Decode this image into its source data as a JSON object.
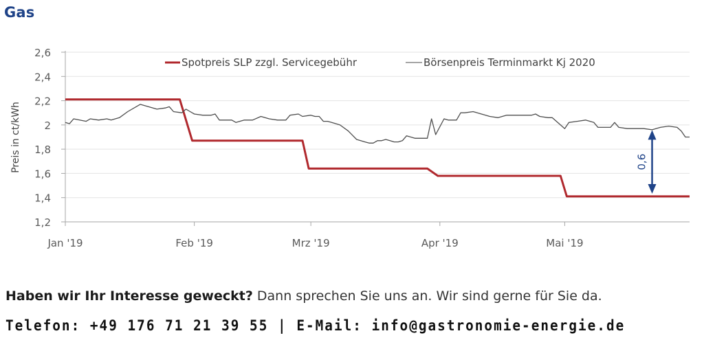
{
  "title": "Gas",
  "chart_data": {
    "type": "line",
    "title": "Gas",
    "xlabel": "",
    "ylabel": "Preis in ct/kWh",
    "ylim": [
      1.2,
      2.6
    ],
    "yticks": [
      1.2,
      1.4,
      1.6,
      1.8,
      2.0,
      2.2,
      2.4,
      2.6
    ],
    "ytick_labels": [
      "1,2",
      "1,4",
      "1,6",
      "1,8",
      "2",
      "2,2",
      "2,4",
      "2,6"
    ],
    "xlim_days": [
      0,
      150
    ],
    "xticks_days": [
      0,
      31,
      59,
      90,
      120
    ],
    "xtick_labels": [
      "Jan '19",
      "Feb '19",
      "Mrz '19",
      "Apr '19",
      "Mai '19"
    ],
    "grid": true,
    "legend_position": "top",
    "series": [
      {
        "name": "Spotpreis SLP zzgl. Servicegebühr",
        "color": "#b0282d",
        "x_days": [
          0,
          27.5,
          30.5,
          57,
          58.5,
          87,
          89.5,
          119,
          120.5,
          150
        ],
        "values": [
          2.21,
          2.21,
          1.87,
          1.87,
          1.64,
          1.64,
          1.58,
          1.58,
          1.41,
          1.41
        ]
      },
      {
        "name": "Börsenpreis Terminmarkt Kj 2020",
        "color": "#4d4d4d",
        "x_days": [
          0,
          1,
          2,
          5,
          6,
          8,
          10,
          11,
          13,
          15,
          18,
          19,
          20,
          22,
          24,
          25,
          26,
          28,
          29,
          30,
          31,
          33,
          35,
          36,
          37,
          39,
          40,
          41,
          43,
          45,
          47,
          49,
          51,
          53,
          54,
          56,
          57,
          59,
          60,
          61,
          62,
          63,
          64,
          66,
          68,
          70,
          72,
          73,
          74,
          75,
          76,
          77,
          78,
          79,
          80,
          81,
          82,
          84,
          85,
          86,
          87,
          88,
          89,
          91,
          92,
          93,
          94,
          95,
          96,
          98,
          100,
          101,
          102,
          104,
          106,
          108,
          110,
          112,
          113,
          114,
          116,
          117,
          119,
          120,
          121,
          123,
          125,
          127,
          128,
          130,
          131,
          132,
          133,
          135,
          137,
          139,
          141,
          143,
          145,
          147,
          148,
          149,
          150
        ],
        "values": [
          2.02,
          2.01,
          2.05,
          2.03,
          2.05,
          2.04,
          2.05,
          2.04,
          2.06,
          2.11,
          2.17,
          2.16,
          2.15,
          2.13,
          2.14,
          2.15,
          2.11,
          2.1,
          2.13,
          2.11,
          2.09,
          2.08,
          2.08,
          2.09,
          2.04,
          2.04,
          2.04,
          2.02,
          2.04,
          2.04,
          2.07,
          2.05,
          2.04,
          2.04,
          2.08,
          2.09,
          2.07,
          2.08,
          2.07,
          2.07,
          2.03,
          2.03,
          2.02,
          2.0,
          1.95,
          1.88,
          1.86,
          1.85,
          1.85,
          1.87,
          1.87,
          1.88,
          1.87,
          1.86,
          1.86,
          1.87,
          1.91,
          1.89,
          1.89,
          1.89,
          1.89,
          2.05,
          1.92,
          2.05,
          2.04,
          2.04,
          2.04,
          2.1,
          2.1,
          2.11,
          2.09,
          2.08,
          2.07,
          2.06,
          2.08,
          2.08,
          2.08,
          2.08,
          2.09,
          2.07,
          2.06,
          2.06,
          2.0,
          1.97,
          2.02,
          2.03,
          2.04,
          2.02,
          1.98,
          1.98,
          1.98,
          2.02,
          1.98,
          1.97,
          1.97,
          1.97,
          1.96,
          1.98,
          1.99,
          1.98,
          1.95,
          1.9,
          1.9
        ]
      }
    ],
    "annotations": [
      {
        "text": "0,6",
        "type": "double-arrow",
        "x_day": 141,
        "from": 1.98,
        "to": 1.41,
        "color": "#1f4388"
      }
    ]
  },
  "footer": {
    "cta_bold": "Haben wir Ihr Interesse geweckt?",
    "cta_rest": " Dann sprechen Sie uns an. Wir sind gerne für Sie da.",
    "contact": "Telefon: +49 176 71 21 39 55 | E-Mail: info@gastronomie-energie.de"
  }
}
